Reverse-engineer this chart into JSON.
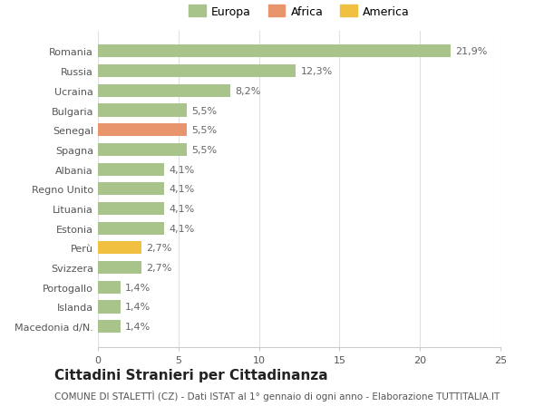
{
  "categories": [
    "Macedonia d/N.",
    "Islanda",
    "Portogallo",
    "Svizzera",
    "Perù",
    "Estonia",
    "Lituania",
    "Regno Unito",
    "Albania",
    "Spagna",
    "Senegal",
    "Bulgaria",
    "Ucraina",
    "Russia",
    "Romania"
  ],
  "values": [
    1.4,
    1.4,
    1.4,
    2.7,
    2.7,
    4.1,
    4.1,
    4.1,
    4.1,
    5.5,
    5.5,
    5.5,
    8.2,
    12.3,
    21.9
  ],
  "labels": [
    "1,4%",
    "1,4%",
    "1,4%",
    "2,7%",
    "2,7%",
    "4,1%",
    "4,1%",
    "4,1%",
    "4,1%",
    "5,5%",
    "5,5%",
    "5,5%",
    "8,2%",
    "12,3%",
    "21,9%"
  ],
  "colors": [
    "#a8c48a",
    "#a8c48a",
    "#a8c48a",
    "#a8c48a",
    "#f0c040",
    "#a8c48a",
    "#a8c48a",
    "#a8c48a",
    "#a8c48a",
    "#a8c48a",
    "#e8956d",
    "#a8c48a",
    "#a8c48a",
    "#a8c48a",
    "#a8c48a"
  ],
  "legend_labels": [
    "Europa",
    "Africa",
    "America"
  ],
  "legend_colors": [
    "#a8c48a",
    "#e8956d",
    "#f0c040"
  ],
  "title": "Cittadini Stranieri per Cittadinanza",
  "subtitle": "COMUNE DI STALETTÌ (CZ) - Dati ISTAT al 1° gennaio di ogni anno - Elaborazione TUTTITALIA.IT",
  "xlim": [
    0,
    25
  ],
  "xticks": [
    0,
    5,
    10,
    15,
    20,
    25
  ],
  "background_color": "#ffffff",
  "bar_height": 0.65,
  "title_fontsize": 11,
  "subtitle_fontsize": 7.5,
  "label_fontsize": 8,
  "tick_fontsize": 8,
  "legend_fontsize": 9
}
